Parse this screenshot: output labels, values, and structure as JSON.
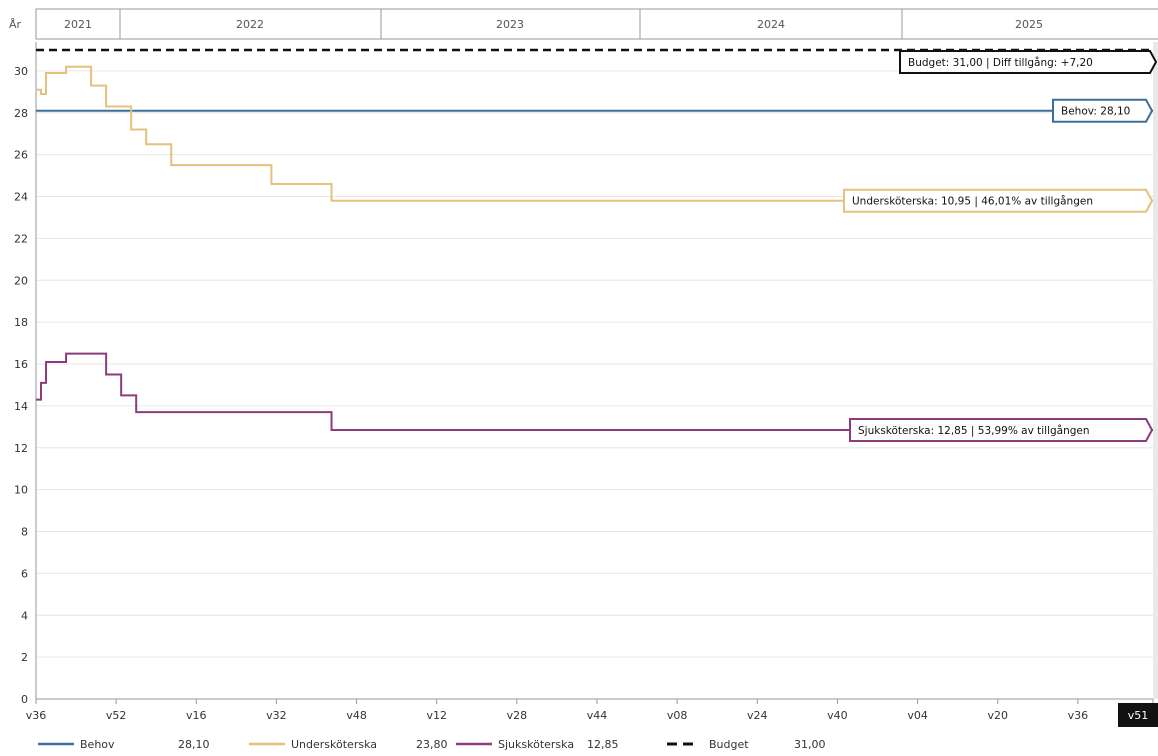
{
  "chart_data": {
    "type": "line",
    "year_axis_label": "År",
    "years": [
      "2021",
      "2022",
      "2023",
      "2024",
      "2025"
    ],
    "x_ticks": [
      "v36",
      "v52",
      "v16",
      "v32",
      "v48",
      "v12",
      "v28",
      "v44",
      "v08",
      "v24",
      "v40",
      "v04",
      "v20",
      "v36",
      "v51"
    ],
    "y_ticks": [
      "0",
      "2",
      "4",
      "6",
      "8",
      "10",
      "12",
      "14",
      "16",
      "18",
      "20",
      "22",
      "24",
      "26",
      "28",
      "30"
    ],
    "ylim": [
      0,
      31
    ],
    "grid": true,
    "legend_position": "bottom",
    "series": [
      {
        "name": "Behov",
        "color": "#3d6f9a",
        "style": "solid",
        "legend_value": "28,10",
        "callout": "Behov: 28,10",
        "points": [
          [
            "v36 2021",
            28.1
          ],
          [
            "v51 2025",
            28.1
          ]
        ]
      },
      {
        "name": "Undersköterska",
        "color": "#e4c17c",
        "style": "step",
        "legend_value": "23,80",
        "callout": "Undersköterska: 10,95 | 46,01% av tillgången",
        "points": [
          [
            "v36 2021",
            29.1
          ],
          [
            "v37 2021",
            28.9
          ],
          [
            "v38 2021",
            29.9
          ],
          [
            "v42 2021",
            30.2
          ],
          [
            "v47 2021",
            29.3
          ],
          [
            "v50 2021",
            28.3
          ],
          [
            "v03 2022",
            27.2
          ],
          [
            "v06 2022",
            26.5
          ],
          [
            "v11 2022",
            25.5
          ],
          [
            "v31 2022",
            24.6
          ],
          [
            "v43 2022",
            23.8
          ],
          [
            "v51 2025",
            23.8
          ]
        ]
      },
      {
        "name": "Sjuksköterska",
        "color": "#8e3b7e",
        "style": "step",
        "legend_value": "12,85",
        "callout": "Sjuksköterska: 12,85 | 53,99% av tillgången",
        "points": [
          [
            "v36 2021",
            14.3
          ],
          [
            "v37 2021",
            15.1
          ],
          [
            "v38 2021",
            16.1
          ],
          [
            "v42 2021",
            16.5
          ],
          [
            "v50 2021",
            15.5
          ],
          [
            "v01 2022",
            14.5
          ],
          [
            "v04 2022",
            13.7
          ],
          [
            "v43 2022",
            12.85
          ],
          [
            "v51 2025",
            12.85
          ]
        ]
      },
      {
        "name": "Budget",
        "color": "#111111",
        "style": "dashed",
        "legend_value": "31,00",
        "callout": "Budget: 31,00 | Diff tillgång: +7,20",
        "points": [
          [
            "v36 2021",
            31.0
          ],
          [
            "v51 2025",
            31.0
          ]
        ]
      }
    ]
  }
}
